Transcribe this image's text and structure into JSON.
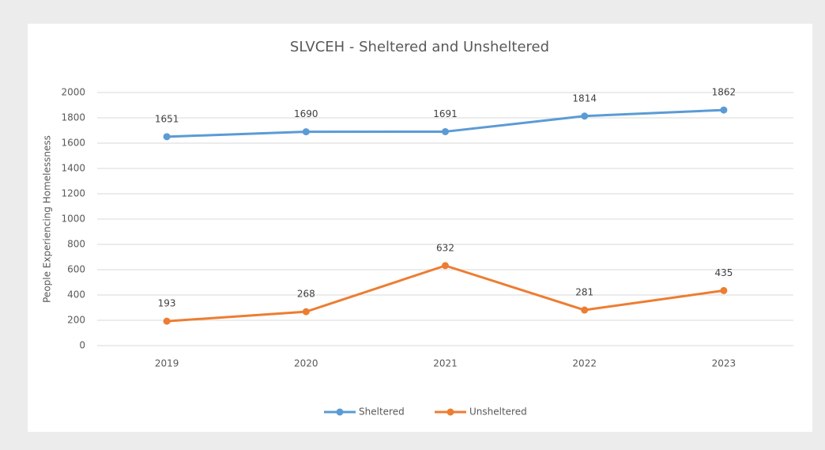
{
  "chart_data": {
    "type": "line",
    "title": "SLVCEH - Sheltered and Unsheltered",
    "y_label": "People Experiencing Homelessness",
    "categories": [
      "2019",
      "2020",
      "2021",
      "2022",
      "2023"
    ],
    "series": [
      {
        "name": "Sheltered",
        "color": "#5b9bd5",
        "values": [
          1651,
          1690,
          1691,
          1814,
          1862
        ]
      },
      {
        "name": "Unsheltered",
        "color": "#ed7d31",
        "values": [
          193,
          268,
          632,
          281,
          435
        ]
      }
    ],
    "ylim": [
      0,
      2000
    ],
    "yticks": [
      0,
      200,
      400,
      600,
      800,
      1000,
      1200,
      1400,
      1600,
      1800,
      2000
    ],
    "grid": true,
    "legend": "bottom"
  }
}
